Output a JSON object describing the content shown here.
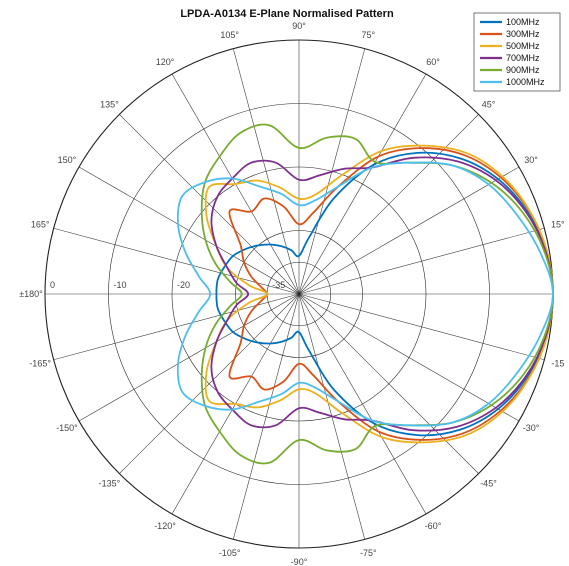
{
  "chart_data": {
    "type": "line",
    "projection": "polar",
    "title": "LPDA-A0134 E-Plane Normalised Pattern",
    "r_unit": "dB",
    "rlim": [
      -40,
      0
    ],
    "r_ticks": [
      -35,
      -20,
      -10,
      0
    ],
    "r_tick_labels": [
      "-35",
      "-20",
      "-10",
      "0"
    ],
    "theta_ticks": [
      0,
      15,
      30,
      45,
      60,
      75,
      90,
      105,
      120,
      135,
      150,
      165,
      180,
      -165,
      -150,
      -135,
      -120,
      -105,
      -90,
      -75,
      -60,
      -45,
      -30,
      -15
    ],
    "theta_tick_labels": [
      "",
      "15°",
      "30°",
      "45°",
      "60°",
      "75°",
      "90°",
      "105°",
      "120°",
      "135°",
      "150°",
      "165°",
      "±180°",
      "-165°",
      "-150°",
      "-135°",
      "-120°",
      "-105°",
      "-90°",
      "-75°",
      "-60°",
      "-45°",
      "-30°",
      "-15"
    ],
    "grid": true,
    "legend_position": "top-right",
    "theta_deg": [
      0,
      10,
      20,
      30,
      40,
      50,
      60,
      70,
      80,
      90,
      100,
      110,
      120,
      130,
      140,
      150,
      160,
      170,
      180,
      190,
      200,
      210,
      220,
      230,
      240,
      250,
      260,
      270,
      280,
      290,
      300,
      310,
      320,
      330,
      340,
      350
    ],
    "series": [
      {
        "name": "100MHz",
        "color": "#0072BD",
        "r_db": [
          0,
          -0.5,
          -1.8,
          -3.8,
          -6.8,
          -11,
          -16.5,
          -24,
          -31,
          -34,
          -33,
          -32,
          -31,
          -30,
          -29,
          -28,
          -27.5,
          -27,
          -27,
          -27,
          -27.5,
          -28,
          -29,
          -30,
          -31,
          -32,
          -33,
          -34,
          -31,
          -24,
          -16.5,
          -11,
          -6.8,
          -3.8,
          -1.8,
          -0.5
        ]
      },
      {
        "name": "300MHz",
        "color": "#D95319",
        "r_db": [
          0,
          -0.4,
          -1.5,
          -3.3,
          -6,
          -10,
          -15,
          -22,
          -27,
          -29,
          -26,
          -24,
          -25,
          -23,
          -28,
          -30,
          -32,
          -34,
          -35,
          -34,
          -32,
          -30,
          -28,
          -23,
          -25,
          -24,
          -26,
          -29,
          -27,
          -22,
          -15,
          -10,
          -6,
          -3.3,
          -1.5,
          -0.4
        ]
      },
      {
        "name": "500MHz",
        "color": "#EDB120",
        "r_db": [
          0,
          -0.4,
          -1.4,
          -3,
          -5.5,
          -9.5,
          -14,
          -20,
          -24,
          -25,
          -23,
          -21,
          -20,
          -18,
          -21,
          -25,
          -28,
          -32,
          -35,
          -32,
          -28,
          -25,
          -21,
          -18,
          -20,
          -21,
          -23,
          -25,
          -24,
          -20,
          -14,
          -9.5,
          -5.5,
          -3,
          -1.4,
          -0.4
        ]
      },
      {
        "name": "700MHz",
        "color": "#7E2F8E",
        "r_db": [
          0,
          -0.6,
          -2,
          -4.2,
          -7.5,
          -12,
          -17,
          -19,
          -21,
          -22,
          -19,
          -18,
          -19,
          -20,
          -22,
          -25,
          -28,
          -30,
          -32,
          -30,
          -28,
          -25,
          -22,
          -20,
          -19,
          -18,
          -19,
          -22,
          -21,
          -19,
          -17,
          -12,
          -7.5,
          -4.2,
          -2,
          -0.6
        ]
      },
      {
        "name": "900MHz",
        "color": "#77AC30",
        "r_db": [
          0,
          -0.8,
          -2.5,
          -5,
          -8.5,
          -13,
          -16,
          -14,
          -15,
          -17,
          -13,
          -13,
          -15,
          -17,
          -20,
          -23,
          -26,
          -29,
          -31,
          -29,
          -26,
          -23,
          -20,
          -17,
          -15,
          -13,
          -13,
          -17,
          -15,
          -14,
          -16,
          -13,
          -8.5,
          -5,
          -2.5,
          -0.8
        ]
      },
      {
        "name": "1000MHz",
        "color": "#4DBEEE",
        "r_db": [
          0,
          -1.5,
          -3.5,
          -5.5,
          -8.5,
          -13,
          -17,
          -22,
          -25,
          -26,
          -24,
          -22,
          -19,
          -17,
          -16,
          -18,
          -21,
          -24,
          -26,
          -24,
          -21,
          -18,
          -16,
          -17,
          -19,
          -22,
          -24,
          -26,
          -25,
          -22,
          -17,
          -13,
          -8.5,
          -5.5,
          -3.5,
          -1.5
        ]
      }
    ]
  }
}
